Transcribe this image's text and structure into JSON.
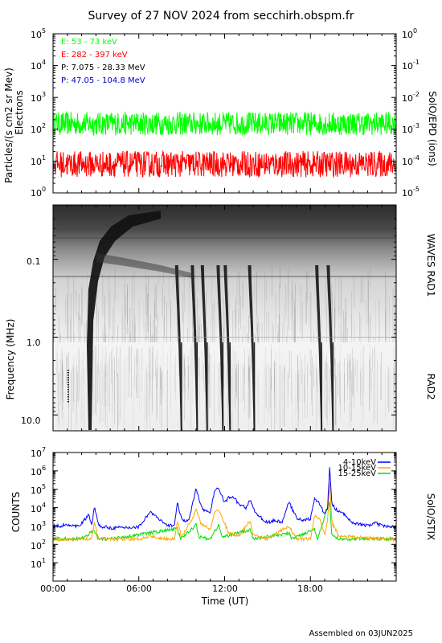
{
  "title": "Survey of 27 NOV 2024 from secchirh.obspm.fr",
  "footer": "Assembled on 03JUN2025",
  "colors": {
    "green": "#00ff00",
    "red": "#ff0000",
    "black": "#000000",
    "blue": "#0000cc",
    "stix_blue": "#0000ff",
    "stix_orange": "#ffa500",
    "stix_green": "#00dd00"
  },
  "chart_data": [
    {
      "type": "line",
      "panel": "SolO/EPD",
      "ylabel": "Particles/(s cm2 sr Mev)",
      "ylabel2": "Electrons",
      "right_label": "SolO/EPD (ions)",
      "yscale": "log",
      "ylim": [
        1,
        100000
      ],
      "left_ticks": [
        {
          "base": "10",
          "exp": "5"
        },
        {
          "base": "10",
          "exp": "4"
        },
        {
          "base": "10",
          "exp": "3"
        },
        {
          "base": "10",
          "exp": "2"
        },
        {
          "base": "10",
          "exp": "1"
        },
        {
          "base": "10",
          "exp": "0"
        }
      ],
      "right_ylim": [
        1e-05,
        1
      ],
      "right_ticks": [
        {
          "base": "10",
          "exp": "0"
        },
        {
          "base": "10",
          "exp": "-1"
        },
        {
          "base": "10",
          "exp": "-2"
        },
        {
          "base": "10",
          "exp": "-3"
        },
        {
          "base": "10",
          "exp": "-4"
        },
        {
          "base": "10",
          "exp": "-5"
        }
      ],
      "xlim": [
        0,
        24
      ],
      "legend": [
        {
          "text": "E: 53 - 73 keV",
          "color": "#00ff00"
        },
        {
          "text": "E: 282 - 397 keV",
          "color": "#ff0000"
        },
        {
          "text": "P: 7.075 - 28.33 MeV",
          "color": "#000000"
        },
        {
          "text": "P: 47.05 - 104.8 MeV",
          "color": "#0000cc"
        }
      ],
      "series": [
        {
          "name": "E: 53 - 73 keV",
          "level": 150,
          "min": 60,
          "max": 400
        },
        {
          "name": "E: 282 - 397 keV",
          "level": 8,
          "min": 3,
          "max": 25
        }
      ]
    },
    {
      "type": "heatmap",
      "panel": "WAVES",
      "ylabel": "Frequency (MHz)",
      "yscale": "log",
      "ylim": [
        0.02,
        16
      ],
      "yticks": [
        "0.1",
        "1.0",
        "10.0"
      ],
      "ytick_values": [
        0.1,
        1.0,
        10.0
      ],
      "right_label_top": "WAVES RAD1",
      "right_label_bottom": "RAD2",
      "xlim": [
        0,
        24
      ],
      "bursts": [
        {
          "time": 2.7,
          "kind": "type II / strong"
        },
        {
          "time": 8.7,
          "kind": "type III"
        },
        {
          "time": 9.8,
          "kind": "type III"
        },
        {
          "time": 10.5,
          "kind": "type III"
        },
        {
          "time": 11.6,
          "kind": "type III"
        },
        {
          "time": 12.1,
          "kind": "type III"
        },
        {
          "time": 13.8,
          "kind": "type III"
        },
        {
          "time": 18.5,
          "kind": "type III"
        },
        {
          "time": 19.3,
          "kind": "type III"
        }
      ]
    },
    {
      "type": "line",
      "panel": "SolO/STIX",
      "ylabel": "COUNTS",
      "right_label": "SolO/STIX",
      "xlabel": "Time (UT)",
      "yscale": "log",
      "ylim": [
        1,
        10000000
      ],
      "yticks": [
        {
          "base": "10",
          "exp": "7"
        },
        {
          "base": "10",
          "exp": "6"
        },
        {
          "base": "10",
          "exp": "5"
        },
        {
          "base": "10",
          "exp": "4"
        },
        {
          "base": "10",
          "exp": "3"
        },
        {
          "base": "10",
          "exp": "2"
        },
        {
          "base": "10",
          "exp": "1"
        }
      ],
      "xlim": [
        0,
        24
      ],
      "xticks": [
        "00:00",
        "06:00",
        "12:00",
        "18:00"
      ],
      "xtick_values": [
        0,
        6,
        12,
        18
      ],
      "legend": [
        {
          "text": "4-10keV",
          "color": "#0000ff"
        },
        {
          "text": "10-15keV",
          "color": "#ffa500"
        },
        {
          "text": "15-25keV",
          "color": "#00dd00"
        }
      ],
      "series": [
        {
          "name": "4-10keV",
          "x": [
            0,
            0.5,
            1,
            1.5,
            2,
            2.5,
            2.7,
            2.9,
            3.2,
            4,
            5,
            6,
            6.5,
            6.8,
            7.5,
            8,
            8.5,
            8.7,
            9,
            9.5,
            9.8,
            10,
            10.2,
            10.5,
            11,
            11.3,
            11.6,
            11.8,
            12,
            12.3,
            12.6,
            13,
            13.5,
            13.8,
            14,
            14.5,
            15,
            15.5,
            16,
            16.5,
            17,
            17.5,
            18,
            18.3,
            18.6,
            19,
            19.2,
            19.35,
            19.5,
            19.8,
            20.2,
            20.6,
            21,
            21.5,
            22,
            22.5,
            23,
            23.5,
            24
          ],
          "y": [
            1000,
            1000,
            1300,
            900,
            1400,
            4000,
            1000,
            12000,
            1000,
            800,
            800,
            900,
            3000,
            6000,
            2000,
            1000,
            1200,
            20000,
            2000,
            2000,
            20000,
            120000,
            30000,
            8000,
            5000,
            80000,
            130000,
            40000,
            20000,
            35000,
            40000,
            15000,
            10000,
            30000,
            8000,
            3000,
            1500,
            2000,
            1500,
            20000,
            3000,
            2000,
            2500,
            30000,
            20000,
            4000,
            10000,
            1800000,
            15000,
            8000,
            5000,
            3000,
            1500,
            1200,
            1000,
            1500,
            1000,
            900,
            900
          ]
        },
        {
          "name": "10-15keV",
          "x": [
            0,
            1,
            2,
            2.7,
            2.9,
            3.2,
            4,
            6,
            6.8,
            7.5,
            8.5,
            8.7,
            9,
            9.8,
            10,
            10.3,
            11,
            11.3,
            11.6,
            11.9,
            12.3,
            13,
            13.8,
            14,
            15,
            16.5,
            17,
            18,
            18.3,
            18.7,
            19,
            19.2,
            19.35,
            19.5,
            20,
            21,
            22,
            23,
            24
          ],
          "y": [
            180,
            180,
            200,
            200,
            1500,
            200,
            190,
            190,
            300,
            200,
            200,
            2000,
            250,
            3000,
            10000,
            1500,
            600,
            5000,
            8000,
            2000,
            400,
            300,
            2000,
            300,
            200,
            1000,
            200,
            200,
            4000,
            2000,
            300,
            2000,
            300000,
            1500,
            300,
            250,
            220,
            200,
            180
          ]
        },
        {
          "name": "15-25keV",
          "x": [
            0,
            2,
            2.9,
            3.1,
            4,
            8.7,
            8.9,
            9.8,
            10,
            10.2,
            11,
            11.6,
            11.8,
            13.8,
            14,
            16.5,
            16.7,
            18.3,
            18.5,
            19.35,
            19.5,
            20,
            24
          ],
          "y": [
            200,
            200,
            600,
            200,
            200,
            700,
            200,
            800,
            1500,
            250,
            200,
            1200,
            250,
            600,
            200,
            400,
            200,
            700,
            200,
            20000,
            300,
            200,
            200
          ]
        }
      ]
    }
  ]
}
